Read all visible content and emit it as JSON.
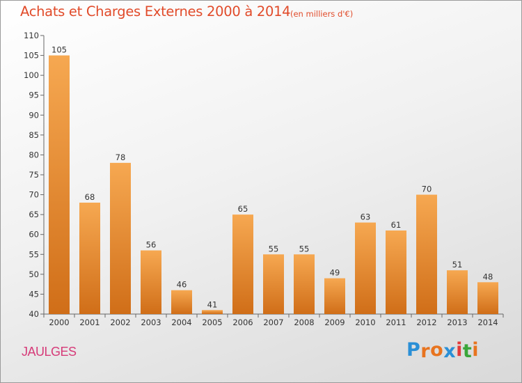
{
  "title": "Achats et Charges Externes 2000 à 2014",
  "subtitle": "(en milliers d'€)",
  "commune": "JAULGES",
  "logo": {
    "text": "Proxiti",
    "letter_colors": [
      "#2a8fd6",
      "#e8741f",
      "#e8741f",
      "#2a8fd6",
      "#e23a3a",
      "#3aa63a",
      "#e8741f"
    ]
  },
  "colors": {
    "title": "#e14b2a",
    "commune": "#d63a78",
    "bar_light": "#f5a54e",
    "bar_dark": "#d27019",
    "axis": "#666666",
    "tick_text": "#333333"
  },
  "chart_data": {
    "type": "bar",
    "title": "Achats et Charges Externes 2000 à 2014",
    "subtitle": "(en milliers d'€)",
    "categories": [
      "2000",
      "2001",
      "2002",
      "2003",
      "2004",
      "2005",
      "2006",
      "2007",
      "2008",
      "2009",
      "2010",
      "2011",
      "2012",
      "2013",
      "2014"
    ],
    "values": [
      105,
      68,
      78,
      56,
      46,
      41,
      65,
      55,
      55,
      49,
      63,
      61,
      70,
      51,
      48
    ],
    "ylim": [
      40,
      110
    ],
    "yticks": [
      40,
      45,
      50,
      55,
      60,
      65,
      70,
      75,
      80,
      85,
      90,
      95,
      100,
      105,
      110
    ],
    "grid": false,
    "legend": "none"
  }
}
